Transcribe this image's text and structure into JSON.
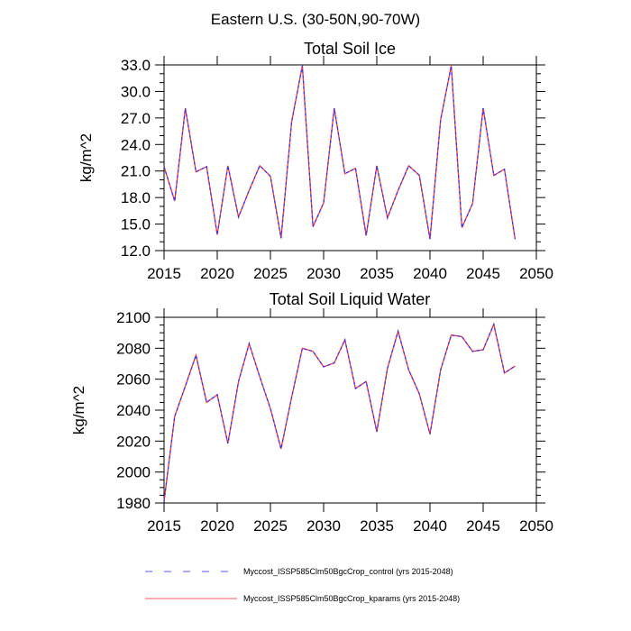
{
  "figure": {
    "main_title": "Eastern U.S. (30-50N,90-70W)"
  },
  "legend": {
    "entries": [
      {
        "label": "Myccost_ISSP585Clm50BgcCrop_control (yrs 2015-2048)",
        "color": "#3333ff",
        "style": "dashed"
      },
      {
        "label": "Myccost_ISSP585Clm50BgcCrop_kparams (yrs 2015-2048)",
        "color": "#ff3333",
        "style": "solid"
      }
    ]
  },
  "chart_data": [
    {
      "type": "line",
      "title": "Total Soil Ice",
      "xlabel": "",
      "ylabel": "kg/m^2",
      "xlim": [
        2015,
        2050
      ],
      "ylim": [
        12.0,
        33.0
      ],
      "xticks": [
        2015,
        2020,
        2025,
        2030,
        2035,
        2040,
        2045,
        2050
      ],
      "xtick_labels": [
        "2015",
        "2020",
        "2025",
        "2030",
        "2035",
        "2040",
        "2045",
        "2050"
      ],
      "yticks": [
        12.0,
        15.0,
        18.0,
        21.0,
        24.0,
        27.0,
        30.0,
        33.0
      ],
      "ytick_labels": [
        "12.0",
        "15.0",
        "18.0",
        "21.0",
        "24.0",
        "27.0",
        "30.0",
        "33.0"
      ],
      "grid": false,
      "x": [
        2015,
        2016,
        2017,
        2018,
        2019,
        2020,
        2021,
        2022,
        2023,
        2024,
        2025,
        2026,
        2027,
        2028,
        2029,
        2030,
        2031,
        2032,
        2033,
        2034,
        2035,
        2036,
        2037,
        2038,
        2039,
        2040,
        2041,
        2042,
        2043,
        2044,
        2045,
        2046,
        2047,
        2048
      ],
      "series": [
        {
          "name": "Myccost_ISSP585Clm50BgcCrop_kparams (yrs 2015-2048)",
          "color": "#ff3333",
          "style": "solid",
          "values": [
            21.5,
            17.6,
            28.1,
            20.9,
            21.5,
            13.8,
            21.6,
            15.8,
            18.8,
            21.6,
            20.4,
            13.4,
            26.6,
            32.9,
            14.7,
            17.4,
            28.1,
            20.7,
            21.3,
            13.7,
            21.6,
            15.7,
            18.8,
            21.6,
            20.5,
            13.3,
            26.8,
            32.9,
            14.6,
            17.3,
            28.1,
            20.5,
            21.2,
            13.3
          ]
        },
        {
          "name": "Myccost_ISSP585Clm50BgcCrop_control (yrs 2015-2048)",
          "color": "#3333ff",
          "style": "dashed",
          "values": [
            21.5,
            17.6,
            28.1,
            20.9,
            21.5,
            13.8,
            21.6,
            15.8,
            18.8,
            21.6,
            20.4,
            13.4,
            26.6,
            32.9,
            14.7,
            17.4,
            28.1,
            20.7,
            21.3,
            13.7,
            21.6,
            15.7,
            18.8,
            21.6,
            20.5,
            13.3,
            26.8,
            32.9,
            14.6,
            17.3,
            28.1,
            20.5,
            21.2,
            13.3
          ]
        }
      ]
    },
    {
      "type": "line",
      "title": "Total Soil Liquid Water",
      "xlabel": "",
      "ylabel": "kg/m^2",
      "xlim": [
        2015,
        2050
      ],
      "ylim": [
        1980,
        2100
      ],
      "xticks": [
        2015,
        2020,
        2025,
        2030,
        2035,
        2040,
        2045,
        2050
      ],
      "xtick_labels": [
        "2015",
        "2020",
        "2025",
        "2030",
        "2035",
        "2040",
        "2045",
        "2050"
      ],
      "yticks": [
        1980,
        2000,
        2020,
        2040,
        2060,
        2080,
        2100
      ],
      "ytick_labels": [
        "1980",
        "2000",
        "2020",
        "2040",
        "2060",
        "2080",
        "2100"
      ],
      "grid": false,
      "x": [
        2015,
        2016,
        2017,
        2018,
        2019,
        2020,
        2021,
        2022,
        2023,
        2024,
        2025,
        2026,
        2027,
        2028,
        2029,
        2030,
        2031,
        2032,
        2033,
        2034,
        2035,
        2036,
        2037,
        2038,
        2039,
        2040,
        2041,
        2042,
        2043,
        2044,
        2045,
        2046,
        2047,
        2048
      ],
      "series": [
        {
          "name": "Myccost_ISSP585Clm50BgcCrop_kparams (yrs 2015-2048)",
          "color": "#ff3333",
          "style": "solid",
          "values": [
            1981,
            2036,
            2055.5,
            2075.5,
            2045,
            2050,
            2018.5,
            2058.5,
            2083,
            2061.5,
            2041,
            2015,
            2048.5,
            2080,
            2078,
            2068,
            2070.5,
            2085.5,
            2054,
            2058.5,
            2026,
            2067,
            2091,
            2066,
            2050.5,
            2024.5,
            2066,
            2088.5,
            2087.5,
            2078,
            2079,
            2095.5,
            2064,
            2068.5
          ]
        },
        {
          "name": "Myccost_ISSP585Clm50BgcCrop_control (yrs 2015-2048)",
          "color": "#3333ff",
          "style": "dashed",
          "values": [
            1981,
            2036,
            2055.5,
            2075.5,
            2045,
            2050,
            2018.5,
            2058.5,
            2083,
            2061.5,
            2041,
            2015,
            2048.5,
            2080,
            2078,
            2068,
            2070.5,
            2085.5,
            2054,
            2058.5,
            2026,
            2067,
            2091,
            2066,
            2050.5,
            2024.5,
            2066,
            2088.5,
            2087.5,
            2078,
            2079,
            2095.5,
            2064,
            2068.5
          ]
        }
      ]
    }
  ]
}
